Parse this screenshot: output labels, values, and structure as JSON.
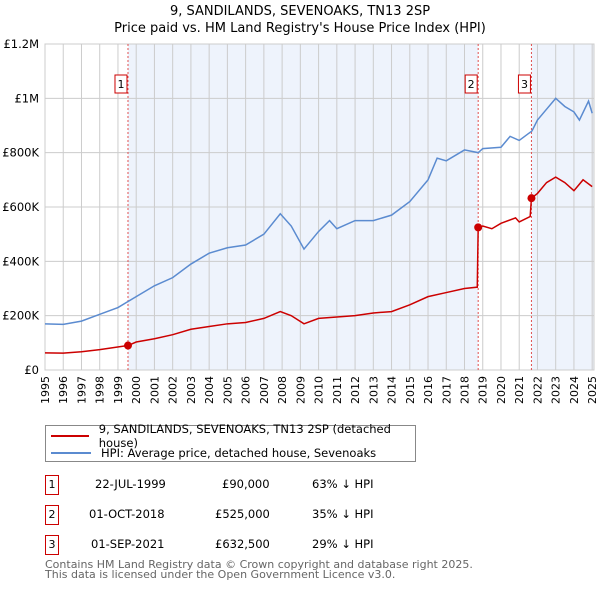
{
  "chart_data": {
    "type": "line",
    "title": "9, SANDILANDS, SEVENOAKS, TN13 2SP",
    "subtitle": "Price paid vs. HM Land Registry's House Price Index (HPI)",
    "xlim": [
      1995,
      2025.1
    ],
    "ylim": [
      0,
      1200000
    ],
    "x_ticks": [
      "1995",
      "1996",
      "1997",
      "1998",
      "1999",
      "2000",
      "2001",
      "2002",
      "2003",
      "2004",
      "2005",
      "2006",
      "2007",
      "2008",
      "2009",
      "2010",
      "2011",
      "2012",
      "2013",
      "2014",
      "2015",
      "2016",
      "2017",
      "2018",
      "2019",
      "2020",
      "2021",
      "2022",
      "2023",
      "2024",
      "2025"
    ],
    "y_ticks": [
      {
        "v": 0,
        "label": "£0"
      },
      {
        "v": 200000,
        "label": "£200K"
      },
      {
        "v": 400000,
        "label": "£400K"
      },
      {
        "v": 600000,
        "label": "£600K"
      },
      {
        "v": 800000,
        "label": "£800K"
      },
      {
        "v": 1000000,
        "label": "£1M"
      },
      {
        "v": 1200000,
        "label": "£1.2M"
      }
    ],
    "series": [
      {
        "name": "9, SANDILANDS, SEVENOAKS, TN13 2SP (detached house)",
        "color": "#cc0000",
        "points": [
          [
            1995,
            63000
          ],
          [
            1996,
            62000
          ],
          [
            1997,
            67000
          ],
          [
            1998,
            75000
          ],
          [
            1999.55,
            90000
          ],
          [
            2000,
            103000
          ],
          [
            2001,
            115000
          ],
          [
            2002,
            130000
          ],
          [
            2003,
            150000
          ],
          [
            2004,
            160000
          ],
          [
            2005,
            170000
          ],
          [
            2006,
            175000
          ],
          [
            2007,
            190000
          ],
          [
            2007.9,
            215000
          ],
          [
            2008.5,
            200000
          ],
          [
            2009.2,
            170000
          ],
          [
            2010,
            190000
          ],
          [
            2011,
            195000
          ],
          [
            2012,
            200000
          ],
          [
            2013,
            210000
          ],
          [
            2014,
            215000
          ],
          [
            2015,
            240000
          ],
          [
            2016,
            270000
          ],
          [
            2017,
            285000
          ],
          [
            2018,
            300000
          ],
          [
            2018.7,
            305000
          ],
          [
            2018.75,
            525000
          ],
          [
            2019,
            530000
          ],
          [
            2019.5,
            520000
          ],
          [
            2020,
            540000
          ],
          [
            2020.8,
            560000
          ],
          [
            2021,
            545000
          ],
          [
            2021.6,
            565000
          ],
          [
            2021.67,
            632500
          ],
          [
            2022,
            650000
          ],
          [
            2022.5,
            690000
          ],
          [
            2023,
            710000
          ],
          [
            2023.5,
            690000
          ],
          [
            2024,
            660000
          ],
          [
            2024.5,
            700000
          ],
          [
            2025,
            675000
          ]
        ]
      },
      {
        "name": "HPI: Average price, detached house, Sevenoaks",
        "color": "#5b8bd0",
        "points": [
          [
            1995,
            170000
          ],
          [
            1996,
            168000
          ],
          [
            1997,
            180000
          ],
          [
            1998,
            205000
          ],
          [
            1999,
            230000
          ],
          [
            2000,
            270000
          ],
          [
            2001,
            310000
          ],
          [
            2002,
            340000
          ],
          [
            2003,
            390000
          ],
          [
            2004,
            430000
          ],
          [
            2005,
            450000
          ],
          [
            2006,
            460000
          ],
          [
            2007,
            500000
          ],
          [
            2007.9,
            575000
          ],
          [
            2008.5,
            530000
          ],
          [
            2009.2,
            445000
          ],
          [
            2010,
            510000
          ],
          [
            2010.6,
            550000
          ],
          [
            2011,
            520000
          ],
          [
            2012,
            550000
          ],
          [
            2013,
            550000
          ],
          [
            2014,
            570000
          ],
          [
            2015,
            620000
          ],
          [
            2016,
            700000
          ],
          [
            2016.5,
            780000
          ],
          [
            2017,
            770000
          ],
          [
            2018,
            810000
          ],
          [
            2018.75,
            800000
          ],
          [
            2019,
            815000
          ],
          [
            2020,
            820000
          ],
          [
            2020.5,
            860000
          ],
          [
            2021,
            845000
          ],
          [
            2021.7,
            880000
          ],
          [
            2022,
            920000
          ],
          [
            2022.5,
            960000
          ],
          [
            2023,
            1000000
          ],
          [
            2023.5,
            970000
          ],
          [
            2024,
            950000
          ],
          [
            2024.3,
            920000
          ],
          [
            2024.8,
            990000
          ],
          [
            2025,
            945000
          ]
        ]
      }
    ],
    "sales": [
      {
        "id": "1",
        "x": 1999.55,
        "date": "22-JUL-1999",
        "price": 90000,
        "price_label": "£90,000",
        "hpi": "63% ↓ HPI"
      },
      {
        "id": "2",
        "x": 2018.75,
        "date": "01-OCT-2018",
        "price": 525000,
        "price_label": "£525,000",
        "hpi": "35% ↓ HPI"
      },
      {
        "id": "3",
        "x": 2021.67,
        "date": "01-SEP-2021",
        "price": 632500,
        "price_label": "£632,500",
        "hpi": "29% ↓ HPI"
      }
    ]
  },
  "footer": [
    "Contains HM Land Registry data © Crown copyright and database right 2025.",
    "This data is licensed under the Open Government Licence v3.0."
  ]
}
